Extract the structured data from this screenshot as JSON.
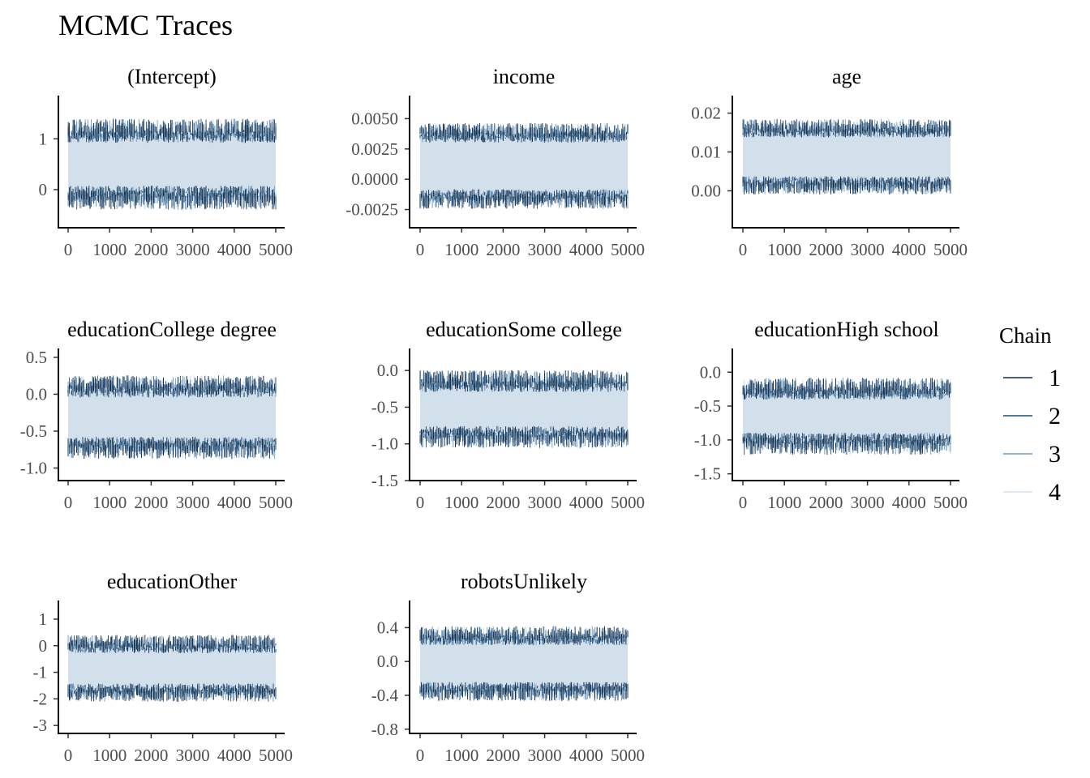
{
  "title": "MCMC Traces",
  "legend": {
    "title": "Chain",
    "placement": "right",
    "items": [
      {
        "label": "1",
        "color": "#0b2a4a"
      },
      {
        "label": "2",
        "color": "#1f4e79"
      },
      {
        "label": "3",
        "color": "#6f98be"
      },
      {
        "label": "4",
        "color": "#d6e2ec"
      }
    ]
  },
  "chart_data": [
    {
      "type": "line",
      "title": "(Intercept)",
      "x_range": [
        0,
        5000
      ],
      "x_ticks": [
        "0",
        "1000",
        "2000",
        "3000",
        "4000",
        "5000"
      ],
      "y_ticks": [
        {
          "value": 0,
          "label": "0"
        },
        {
          "value": 1,
          "label": "1"
        }
      ],
      "ylim": [
        -0.75,
        1.85
      ],
      "band": {
        "low": -0.15,
        "high": 1.15
      },
      "spread": 0.38
    },
    {
      "type": "line",
      "title": "income",
      "x_range": [
        0,
        5000
      ],
      "x_ticks": [
        "0",
        "1000",
        "2000",
        "3000",
        "4000",
        "5000"
      ],
      "y_ticks": [
        {
          "value": -0.0025,
          "label": "-0.0025"
        },
        {
          "value": 0,
          "label": "0.0000"
        },
        {
          "value": 0.0025,
          "label": "0.0025"
        },
        {
          "value": 0.005,
          "label": "0.0050"
        }
      ],
      "ylim": [
        -0.004,
        0.0069
      ],
      "band": {
        "low": -0.0016,
        "high": 0.0038
      },
      "spread": 0.0013
    },
    {
      "type": "line",
      "title": "age",
      "x_range": [
        0,
        5000
      ],
      "x_ticks": [
        "0",
        "1000",
        "2000",
        "3000",
        "4000",
        "5000"
      ],
      "y_ticks": [
        {
          "value": 0,
          "label": "0.00"
        },
        {
          "value": 0.01,
          "label": "0.01"
        },
        {
          "value": 0.02,
          "label": "0.02"
        }
      ],
      "ylim": [
        -0.0095,
        0.0245
      ],
      "band": {
        "low": 0.0015,
        "high": 0.016
      },
      "spread": 0.0038
    },
    {
      "type": "line",
      "title": "educationCollege degree",
      "x_range": [
        0,
        5000
      ],
      "x_ticks": [
        "0",
        "1000",
        "2000",
        "3000",
        "4000",
        "5000"
      ],
      "y_ticks": [
        {
          "value": -1.0,
          "label": "-1.0"
        },
        {
          "value": -0.5,
          "label": "-0.5"
        },
        {
          "value": 0.0,
          "label": "0.0"
        },
        {
          "value": 0.5,
          "label": "0.5"
        }
      ],
      "ylim": [
        -1.17,
        0.62
      ],
      "band": {
        "low": -0.72,
        "high": 0.1
      },
      "spread": 0.24
    },
    {
      "type": "line",
      "title": "educationSome college",
      "x_range": [
        0,
        5000
      ],
      "x_ticks": [
        "0",
        "1000",
        "2000",
        "3000",
        "4000",
        "5000"
      ],
      "y_ticks": [
        {
          "value": -1.5,
          "label": "-1.5"
        },
        {
          "value": -1.0,
          "label": "-1.0"
        },
        {
          "value": -0.5,
          "label": "-0.5"
        },
        {
          "value": 0.0,
          "label": "0.0"
        }
      ],
      "ylim": [
        -1.5,
        0.3
      ],
      "band": {
        "low": -0.9,
        "high": -0.15
      },
      "spread": 0.24
    },
    {
      "type": "line",
      "title": "educationHigh school",
      "x_range": [
        0,
        5000
      ],
      "x_ticks": [
        "0",
        "1000",
        "2000",
        "3000",
        "4000",
        "5000"
      ],
      "y_ticks": [
        {
          "value": -1.5,
          "label": "-1.5"
        },
        {
          "value": -1.0,
          "label": "-1.0"
        },
        {
          "value": -0.5,
          "label": "-0.5"
        },
        {
          "value": 0.0,
          "label": "0.0"
        }
      ],
      "ylim": [
        -1.6,
        0.35
      ],
      "band": {
        "low": -1.05,
        "high": -0.25
      },
      "spread": 0.26
    },
    {
      "type": "line",
      "title": "educationOther",
      "x_range": [
        0,
        5000
      ],
      "x_ticks": [
        "0",
        "1000",
        "2000",
        "3000",
        "4000",
        "5000"
      ],
      "y_ticks": [
        {
          "value": -3,
          "label": "-3"
        },
        {
          "value": -2,
          "label": "-2"
        },
        {
          "value": -1,
          "label": "-1"
        },
        {
          "value": 0,
          "label": "0"
        },
        {
          "value": 1,
          "label": "1"
        }
      ],
      "ylim": [
        -3.3,
        1.7
      ],
      "band": {
        "low": -1.75,
        "high": 0.05
      },
      "spread": 0.55
    },
    {
      "type": "line",
      "title": "robotsUnlikely",
      "x_range": [
        0,
        5000
      ],
      "x_ticks": [
        "0",
        "1000",
        "2000",
        "3000",
        "4000",
        "5000"
      ],
      "y_ticks": [
        {
          "value": -0.8,
          "label": "-0.8"
        },
        {
          "value": -0.4,
          "label": "-0.4"
        },
        {
          "value": 0.0,
          "label": "0.0"
        },
        {
          "value": 0.4,
          "label": "0.4"
        }
      ],
      "ylim": [
        -0.85,
        0.72
      ],
      "band": {
        "low": -0.35,
        "high": 0.3
      },
      "spread": 0.18
    }
  ]
}
